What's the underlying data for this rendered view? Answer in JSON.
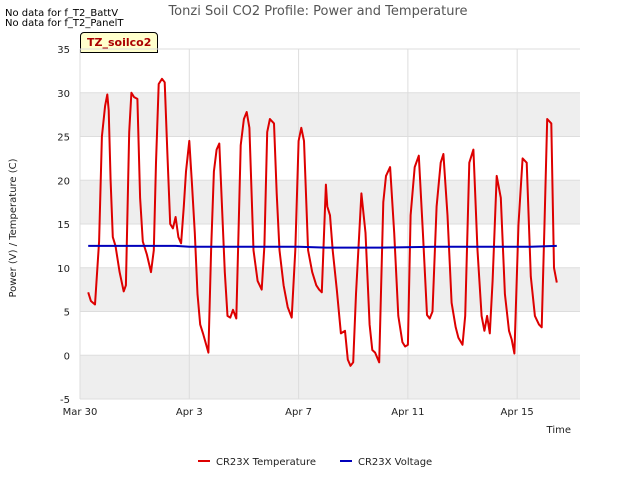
{
  "no_data_lines": [
    "No data for f_T2_BattV",
    "No data for f_T2_PanelT"
  ],
  "badge": "TZ_soilco2",
  "colors": {
    "temperature": "#dd0000",
    "voltage": "#0000bb",
    "band": "#eeeeee"
  },
  "chart_data": {
    "type": "line",
    "title": "Tonzi Soil CO2 Profile: Power and Temperature",
    "xlabel": "Time",
    "ylabel": "Power (V) / Temperature (C)",
    "xlim": [
      0,
      18.3
    ],
    "ylim": [
      -5,
      35
    ],
    "yticks": [
      -5,
      0,
      5,
      10,
      15,
      20,
      25,
      30,
      35
    ],
    "xticks": [
      {
        "x": 0,
        "label": "Mar 30"
      },
      {
        "x": 4,
        "label": "Apr 3"
      },
      {
        "x": 8,
        "label": "Apr 7"
      },
      {
        "x": 12,
        "label": "Apr 11"
      },
      {
        "x": 16,
        "label": "Apr 15"
      }
    ],
    "legend_position": "bottom",
    "series": [
      {
        "name": "CR23X Temperature",
        "color": "#dd0000",
        "x": [
          0.3,
          0.4,
          0.55,
          0.7,
          0.8,
          0.92,
          1.0,
          1.05,
          1.12,
          1.2,
          1.3,
          1.45,
          1.6,
          1.68,
          1.8,
          1.88,
          1.98,
          2.1,
          2.2,
          2.3,
          2.45,
          2.6,
          2.7,
          2.78,
          2.88,
          3.0,
          3.1,
          3.2,
          3.3,
          3.4,
          3.5,
          3.6,
          3.7,
          3.8,
          3.88,
          4.0,
          4.1,
          4.2,
          4.3,
          4.4,
          4.5,
          4.7,
          4.8,
          4.9,
          5.0,
          5.1,
          5.3,
          5.4,
          5.5,
          5.6,
          5.72,
          5.8,
          5.88,
          6.0,
          6.1,
          6.2,
          6.35,
          6.5,
          6.65,
          6.75,
          6.85,
          6.95,
          7.1,
          7.2,
          7.3,
          7.45,
          7.6,
          7.75,
          7.88,
          8.0,
          8.1,
          8.2,
          8.35,
          8.5,
          8.65,
          8.75,
          8.85,
          9.0,
          9.05,
          9.15,
          9.25,
          9.4,
          9.55,
          9.7,
          9.8,
          9.9,
          10.0,
          10.1,
          10.3,
          10.45,
          10.6,
          10.7,
          10.8,
          10.95,
          11.1,
          11.2,
          11.35,
          11.5,
          11.65,
          11.8,
          11.9,
          12.0,
          12.1,
          12.25,
          12.4,
          12.55,
          12.7,
          12.8,
          12.9,
          13.05,
          13.2,
          13.3,
          13.45,
          13.6,
          13.75,
          13.85,
          14.0,
          14.1,
          14.25,
          14.4,
          14.55,
          14.7,
          14.8,
          14.9,
          15.0,
          15.1,
          15.25,
          15.4,
          15.55,
          15.7,
          15.8,
          15.9,
          16.05,
          16.2,
          16.35,
          16.5,
          16.65,
          16.8,
          16.9,
          17.0,
          17.1,
          17.25,
          17.35,
          17.45
        ],
        "y": [
          7.2,
          6.2,
          5.8,
          13.0,
          25.0,
          28.5,
          29.8,
          28.0,
          20.0,
          13.5,
          12.5,
          9.5,
          7.3,
          8.0,
          25.5,
          30.0,
          29.5,
          29.3,
          18.0,
          13.0,
          11.5,
          9.5,
          12.0,
          22.0,
          31.0,
          31.6,
          31.2,
          23.0,
          15.0,
          14.5,
          15.8,
          13.5,
          12.8,
          17.0,
          21.0,
          24.5,
          19.5,
          14.0,
          7.0,
          3.5,
          2.5,
          0.3,
          12.0,
          21.0,
          23.5,
          24.2,
          9.5,
          4.5,
          4.3,
          5.2,
          4.2,
          14.0,
          24.0,
          27.0,
          27.8,
          26.0,
          12.0,
          8.5,
          7.5,
          12.5,
          25.5,
          27.0,
          26.5,
          18.5,
          12.0,
          8.0,
          5.5,
          4.3,
          12.0,
          24.5,
          26.0,
          24.5,
          12.0,
          9.5,
          8.0,
          7.5,
          7.2,
          19.5,
          17.0,
          16.0,
          12.0,
          7.5,
          2.5,
          2.8,
          -0.5,
          -1.2,
          -0.8,
          7.0,
          18.5,
          14.0,
          3.5,
          0.6,
          0.3,
          -0.8,
          17.5,
          20.5,
          21.5,
          14.0,
          4.5,
          1.5,
          1.0,
          1.2,
          16.0,
          21.5,
          22.8,
          14.0,
          4.6,
          4.2,
          5.0,
          17.0,
          22.0,
          23.0,
          16.0,
          6.0,
          3.2,
          2.0,
          1.2,
          4.5,
          22.0,
          23.5,
          12.0,
          4.5,
          2.8,
          4.5,
          2.5,
          8.5,
          20.5,
          18.0,
          7.0,
          2.8,
          1.8,
          0.2,
          15.0,
          22.5,
          22.0,
          9.0,
          4.5,
          3.5,
          3.2,
          15.0,
          27.0,
          26.5,
          10.0,
          8.3
        ]
      },
      {
        "name": "CR23X Voltage",
        "color": "#0000bb",
        "x": [
          0.3,
          2.0,
          3.5,
          4.0,
          6.0,
          8.0,
          9.0,
          11.0,
          13.0,
          15.0,
          16.5,
          17.45
        ],
        "y": [
          12.5,
          12.5,
          12.5,
          12.4,
          12.4,
          12.4,
          12.3,
          12.3,
          12.4,
          12.4,
          12.4,
          12.5
        ]
      }
    ]
  }
}
